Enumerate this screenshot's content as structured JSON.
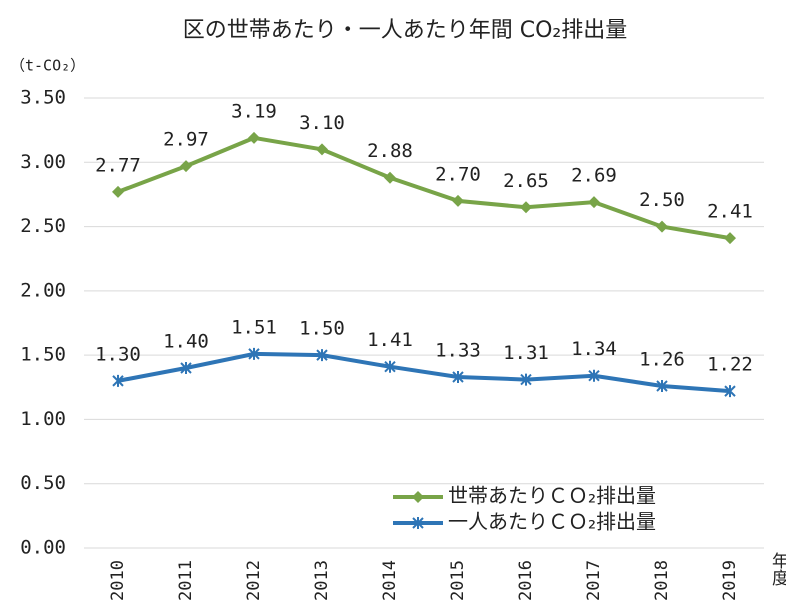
{
  "chart_data": {
    "type": "line",
    "title": "区の世帯あたり・一人あたり年間 CO₂排出量",
    "y_label": "（t-CO₂）",
    "x_label": "年度",
    "categories": [
      "2010",
      "2011",
      "2012",
      "2013",
      "2014",
      "2015",
      "2016",
      "2017",
      "2018",
      "2019"
    ],
    "series": [
      {
        "name": "世帯あたりＣＯ₂排出量",
        "color": "#78a448",
        "marker": "diamond",
        "values": [
          2.77,
          2.97,
          3.19,
          3.1,
          2.88,
          2.7,
          2.65,
          2.69,
          2.5,
          2.41
        ],
        "value_labels": [
          "2.77",
          "2.97",
          "3.19",
          "3.10",
          "2.88",
          "2.70",
          "2.65",
          "2.69",
          "2.50",
          "2.41"
        ]
      },
      {
        "name": "一人あたりＣＯ₂排出量",
        "color": "#2e75b6",
        "marker": "asterisk",
        "values": [
          1.3,
          1.4,
          1.51,
          1.5,
          1.41,
          1.33,
          1.31,
          1.34,
          1.26,
          1.22
        ],
        "value_labels": [
          "1.30",
          "1.40",
          "1.51",
          "1.50",
          "1.41",
          "1.33",
          "1.31",
          "1.34",
          "1.26",
          "1.22"
        ]
      }
    ],
    "ylim": [
      0,
      3.5
    ],
    "yticks": [
      {
        "value": 0,
        "label": "0.00"
      },
      {
        "value": 0.5,
        "label": "0.50"
      },
      {
        "value": 1,
        "label": "1.00"
      },
      {
        "value": 1.5,
        "label": "1.50"
      },
      {
        "value": 2,
        "label": "2.00"
      },
      {
        "value": 2.5,
        "label": "2.50"
      },
      {
        "value": 3,
        "label": "3.00"
      },
      {
        "value": 3.5,
        "label": "3.50"
      }
    ],
    "grid": true,
    "legend": "lower right"
  }
}
